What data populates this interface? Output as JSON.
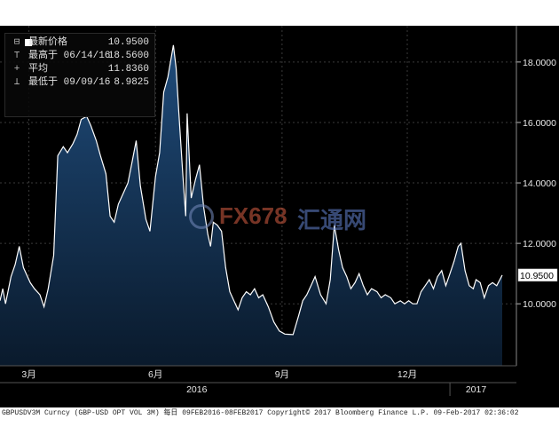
{
  "legend": {
    "rows": [
      {
        "marker": "⊟",
        "label": "最新价格",
        "value": "10.9500"
      },
      {
        "marker": "⊤",
        "label": "最高于 06/14/16",
        "value": "18.5600"
      },
      {
        "marker": "+",
        "label": "平均",
        "value": "11.8360"
      },
      {
        "marker": "⊥",
        "label": "最低于 09/09/16",
        "value": "8.9825"
      }
    ]
  },
  "last_price_label": "10.9500",
  "watermark": {
    "text_a": "FX678",
    "text_b": "汇通网"
  },
  "footer": "GBPUSDV3M Curncy (GBP-USD OPT VOL 3M)  每日 09FEB2016-08FEB2017 Copyright© 2017 Bloomberg Finance L.P.  09-Feb-2017 02:36:02",
  "colors": {
    "background": "#000000",
    "fill_top": "#1f4b7a",
    "fill_bottom": "#0a1a2c",
    "line": "#ffffff",
    "grid": "#3a3a3a"
  },
  "chart_data": {
    "type": "area",
    "title": "",
    "ylim": [
      7.95,
      19.2
    ],
    "y_ticks": [
      "10.0000",
      "12.0000",
      "14.0000",
      "16.0000",
      "18.0000"
    ],
    "y_tick_values": [
      10,
      12,
      14,
      16,
      18
    ],
    "x_ticks": [
      {
        "label": "3月",
        "date": "2016-03-01"
      },
      {
        "label": "6月",
        "date": "2016-06-01"
      },
      {
        "label": "9月",
        "date": "2016-09-01"
      },
      {
        "label": "12月",
        "date": "2016-12-01"
      }
    ],
    "year_labels": [
      {
        "label": "2016",
        "date": "2016-07-01"
      },
      {
        "label": "2017",
        "date": "2017-01-20"
      }
    ],
    "x_range": [
      "2016-02-09",
      "2017-02-08"
    ],
    "series": [
      {
        "points": [
          [
            "2016-02-09",
            10.1
          ],
          [
            "2016-02-11",
            10.5
          ],
          [
            "2016-02-13",
            10.0
          ],
          [
            "2016-02-17",
            10.9
          ],
          [
            "2016-02-20",
            11.3
          ],
          [
            "2016-02-23",
            11.9
          ],
          [
            "2016-02-26",
            11.2
          ],
          [
            "2016-03-02",
            10.7
          ],
          [
            "2016-03-05",
            10.5
          ],
          [
            "2016-03-09",
            10.3
          ],
          [
            "2016-03-12",
            9.9
          ],
          [
            "2016-03-15",
            10.5
          ],
          [
            "2016-03-19",
            11.6
          ],
          [
            "2016-03-22",
            14.9
          ],
          [
            "2016-03-26",
            15.2
          ],
          [
            "2016-03-29",
            15.0
          ],
          [
            "2016-04-02",
            15.3
          ],
          [
            "2016-04-05",
            15.6
          ],
          [
            "2016-04-08",
            16.1
          ],
          [
            "2016-04-12",
            16.2
          ],
          [
            "2016-04-15",
            15.9
          ],
          [
            "2016-04-19",
            15.4
          ],
          [
            "2016-04-22",
            14.9
          ],
          [
            "2016-04-26",
            14.3
          ],
          [
            "2016-04-29",
            12.9
          ],
          [
            "2016-05-02",
            12.7
          ],
          [
            "2016-05-05",
            13.3
          ],
          [
            "2016-05-09",
            13.7
          ],
          [
            "2016-05-12",
            14.0
          ],
          [
            "2016-05-15",
            14.7
          ],
          [
            "2016-05-18",
            15.4
          ],
          [
            "2016-05-21",
            13.9
          ],
          [
            "2016-05-25",
            12.8
          ],
          [
            "2016-05-28",
            12.4
          ],
          [
            "2016-06-01",
            14.2
          ],
          [
            "2016-06-04",
            15.0
          ],
          [
            "2016-06-07",
            17.0
          ],
          [
            "2016-06-10",
            17.5
          ],
          [
            "2016-06-14",
            18.56
          ],
          [
            "2016-06-16",
            17.8
          ],
          [
            "2016-06-18",
            16.3
          ],
          [
            "2016-06-21",
            14.2
          ],
          [
            "2016-06-23",
            12.9
          ],
          [
            "2016-06-24",
            16.3
          ],
          [
            "2016-06-27",
            13.5
          ],
          [
            "2016-06-30",
            14.1
          ],
          [
            "2016-07-03",
            14.6
          ],
          [
            "2016-07-06",
            13.2
          ],
          [
            "2016-07-09",
            12.3
          ],
          [
            "2016-07-11",
            11.9
          ],
          [
            "2016-07-13",
            12.7
          ],
          [
            "2016-07-16",
            12.6
          ],
          [
            "2016-07-19",
            12.4
          ],
          [
            "2016-07-22",
            11.2
          ],
          [
            "2016-07-25",
            10.4
          ],
          [
            "2016-07-28",
            10.1
          ],
          [
            "2016-07-31",
            9.8
          ],
          [
            "2016-08-03",
            10.2
          ],
          [
            "2016-08-06",
            10.4
          ],
          [
            "2016-08-09",
            10.3
          ],
          [
            "2016-08-12",
            10.5
          ],
          [
            "2016-08-15",
            10.2
          ],
          [
            "2016-08-18",
            10.3
          ],
          [
            "2016-08-22",
            9.9
          ],
          [
            "2016-08-26",
            9.4
          ],
          [
            "2016-08-30",
            9.1
          ],
          [
            "2016-09-03",
            9.0
          ],
          [
            "2016-09-06",
            8.99
          ],
          [
            "2016-09-09",
            8.98
          ],
          [
            "2016-09-13",
            9.6
          ],
          [
            "2016-09-16",
            10.1
          ],
          [
            "2016-09-19",
            10.3
          ],
          [
            "2016-09-22",
            10.6
          ],
          [
            "2016-09-25",
            10.9
          ],
          [
            "2016-09-29",
            10.3
          ],
          [
            "2016-10-03",
            10.0
          ],
          [
            "2016-10-06",
            10.8
          ],
          [
            "2016-10-09",
            12.6
          ],
          [
            "2016-10-12",
            11.8
          ],
          [
            "2016-10-15",
            11.2
          ],
          [
            "2016-10-18",
            10.9
          ],
          [
            "2016-10-21",
            10.5
          ],
          [
            "2016-10-24",
            10.7
          ],
          [
            "2016-10-27",
            11.0
          ],
          [
            "2016-10-30",
            10.6
          ],
          [
            "2016-11-02",
            10.3
          ],
          [
            "2016-11-05",
            10.5
          ],
          [
            "2016-11-09",
            10.4
          ],
          [
            "2016-11-12",
            10.2
          ],
          [
            "2016-11-15",
            10.3
          ],
          [
            "2016-11-19",
            10.2
          ],
          [
            "2016-11-22",
            10.0
          ],
          [
            "2016-11-26",
            10.1
          ],
          [
            "2016-11-29",
            10.0
          ],
          [
            "2016-12-02",
            10.1
          ],
          [
            "2016-12-05",
            10.0
          ],
          [
            "2016-12-08",
            10.0
          ],
          [
            "2016-12-11",
            10.4
          ],
          [
            "2016-12-14",
            10.6
          ],
          [
            "2016-12-17",
            10.8
          ],
          [
            "2016-12-20",
            10.5
          ],
          [
            "2016-12-23",
            10.9
          ],
          [
            "2016-12-26",
            11.1
          ],
          [
            "2016-12-29",
            10.6
          ],
          [
            "2017-01-01",
            11.0
          ],
          [
            "2017-01-04",
            11.4
          ],
          [
            "2017-01-07",
            11.9
          ],
          [
            "2017-01-09",
            12.0
          ],
          [
            "2017-01-12",
            11.1
          ],
          [
            "2017-01-15",
            10.6
          ],
          [
            "2017-01-18",
            10.5
          ],
          [
            "2017-01-20",
            10.8
          ],
          [
            "2017-01-23",
            10.7
          ],
          [
            "2017-01-26",
            10.2
          ],
          [
            "2017-01-29",
            10.6
          ],
          [
            "2017-02-01",
            10.7
          ],
          [
            "2017-02-04",
            10.6
          ],
          [
            "2017-02-08",
            10.95
          ]
        ]
      }
    ]
  }
}
